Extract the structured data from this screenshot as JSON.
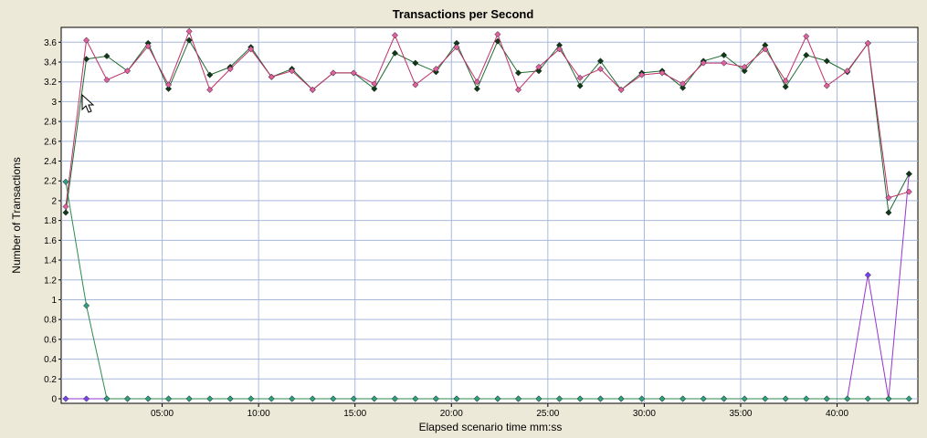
{
  "chart_data": {
    "type": "line",
    "title": "Transactions per Second",
    "xlabel": "Elapsed scenario time mm:ss",
    "ylabel": "Number of Transactions",
    "x_unit": "minutes",
    "xlim": [
      0,
      44
    ],
    "ylim": [
      0,
      3.75
    ],
    "x_ticks": [
      {
        "value": 5,
        "label": "05:00"
      },
      {
        "value": 10,
        "label": "10:00"
      },
      {
        "value": 15,
        "label": "15:00"
      },
      {
        "value": 20,
        "label": "20:00"
      },
      {
        "value": 25,
        "label": "25:00"
      },
      {
        "value": 30,
        "label": "30:00"
      },
      {
        "value": 35,
        "label": "35:00"
      },
      {
        "value": 40,
        "label": "40:00"
      }
    ],
    "y_ticks": [
      {
        "value": 0,
        "label": "0"
      },
      {
        "value": 0.2,
        "label": "0.2"
      },
      {
        "value": 0.4,
        "label": "0.4"
      },
      {
        "value": 0.6,
        "label": "0.6"
      },
      {
        "value": 0.8,
        "label": "0.8"
      },
      {
        "value": 1,
        "label": "1"
      },
      {
        "value": 1.2,
        "label": "1.2"
      },
      {
        "value": 1.4,
        "label": "1.4"
      },
      {
        "value": 1.6,
        "label": "1.6"
      },
      {
        "value": 1.8,
        "label": "1.8"
      },
      {
        "value": 2,
        "label": "2"
      },
      {
        "value": 2.2,
        "label": "2.2"
      },
      {
        "value": 2.4,
        "label": "2.4"
      },
      {
        "value": 2.6,
        "label": "2.6"
      },
      {
        "value": 2.8,
        "label": "2.8"
      },
      {
        "value": 3,
        "label": "3"
      },
      {
        "value": 3.2,
        "label": "3.2"
      },
      {
        "value": 3.4,
        "label": "3.4"
      },
      {
        "value": 3.6,
        "label": "3.6"
      }
    ],
    "grid": true,
    "legend": "none",
    "x": [
      0,
      1.07,
      2.13,
      3.2,
      4.27,
      5.33,
      6.4,
      7.47,
      8.53,
      9.6,
      10.67,
      11.73,
      12.8,
      13.87,
      14.93,
      16,
      17.07,
      18.13,
      19.2,
      20.27,
      21.33,
      22.4,
      23.47,
      24.53,
      25.6,
      26.67,
      27.73,
      28.8,
      29.87,
      30.93,
      32,
      33.07,
      34.13,
      35.2,
      36.27,
      37.33,
      38.4,
      39.47,
      40.53,
      41.6,
      42.67,
      43.73
    ],
    "series": [
      {
        "color": "#1E6B2E",
        "marker_color": "#0F3A18",
        "values": [
          1.88,
          3.43,
          3.46,
          3.31,
          3.59,
          3.13,
          3.62,
          3.27,
          3.35,
          3.55,
          3.25,
          3.33,
          3.12,
          3.29,
          3.29,
          3.13,
          3.49,
          3.39,
          3.3,
          3.59,
          3.13,
          3.61,
          3.29,
          3.31,
          3.57,
          3.16,
          3.41,
          3.12,
          3.29,
          3.31,
          3.14,
          3.41,
          3.47,
          3.31,
          3.57,
          3.15,
          3.47,
          3.41,
          3.3,
          3.59,
          1.88,
          2.27
        ]
      },
      {
        "color": "#C0306A",
        "marker_color": "#E060A0",
        "values": [
          1.94,
          3.62,
          3.22,
          3.31,
          3.56,
          3.17,
          3.71,
          3.12,
          3.33,
          3.53,
          3.25,
          3.31,
          3.12,
          3.29,
          3.29,
          3.18,
          3.67,
          3.17,
          3.33,
          3.55,
          3.2,
          3.68,
          3.12,
          3.35,
          3.53,
          3.24,
          3.33,
          3.12,
          3.27,
          3.29,
          3.18,
          3.39,
          3.39,
          3.35,
          3.53,
          3.21,
          3.66,
          3.16,
          3.31,
          3.59,
          2.03,
          2.09
        ]
      },
      {
        "color": "#2E8B4E",
        "marker_color": "#2EA080",
        "values": [
          2.19,
          0.94,
          0,
          0,
          0,
          0,
          0,
          0,
          0,
          0,
          0,
          0,
          0,
          0,
          0,
          0,
          0,
          0,
          0,
          0,
          0,
          0,
          0,
          0,
          0,
          0,
          0,
          0,
          0,
          0,
          0,
          0,
          0,
          0,
          0,
          0,
          0,
          0,
          0,
          0,
          0,
          0
        ]
      },
      {
        "color": "#9933CC",
        "marker_color": "#7744EE",
        "values": [
          0,
          0,
          0,
          0,
          0,
          0,
          0,
          0,
          0,
          0,
          0,
          0,
          0,
          0,
          0,
          0,
          0,
          0,
          0,
          0,
          0,
          0,
          0,
          0,
          0,
          0,
          0,
          0,
          0,
          0,
          0,
          0,
          0,
          0,
          0,
          0,
          0,
          0,
          0,
          1.25,
          0,
          2.27
        ]
      }
    ]
  }
}
